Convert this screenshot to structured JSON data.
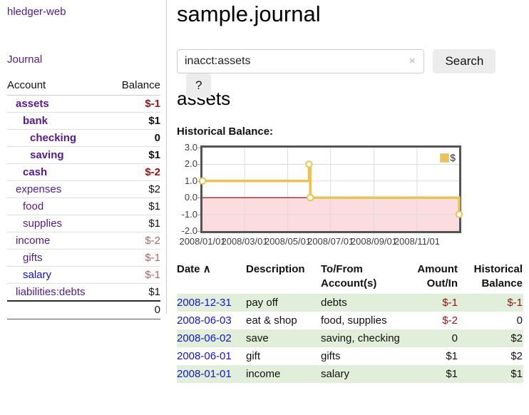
{
  "sidebar": {
    "brand": "hledger-web",
    "journal_link": "Journal",
    "accounts_table": {
      "account_header": "Account",
      "balance_header": "Balance",
      "rows": [
        {
          "name": "assets",
          "depth": 1,
          "bold": true,
          "balance": "$-1",
          "balance_tone": "neg-strong",
          "link_tone": "purple"
        },
        {
          "name": "bank",
          "depth": 2,
          "bold": true,
          "balance": "$1",
          "balance_tone": "",
          "link_tone": "purple"
        },
        {
          "name": "checking",
          "depth": 3,
          "bold": true,
          "balance": "0",
          "balance_tone": "",
          "link_tone": "purple"
        },
        {
          "name": "saving",
          "depth": 3,
          "bold": true,
          "balance": "$1",
          "balance_tone": "",
          "link_tone": "purple"
        },
        {
          "name": "cash",
          "depth": 2,
          "bold": true,
          "balance": "$-2",
          "balance_tone": "neg-strong",
          "link_tone": "purple"
        },
        {
          "name": "expenses",
          "depth": 1,
          "bold": false,
          "balance": "$2",
          "balance_tone": "",
          "link_tone": "purple"
        },
        {
          "name": "food",
          "depth": 2,
          "bold": false,
          "balance": "$1",
          "balance_tone": "",
          "link_tone": "purple"
        },
        {
          "name": "supplies",
          "depth": 2,
          "bold": false,
          "balance": "$1",
          "balance_tone": "",
          "link_tone": "purple"
        },
        {
          "name": "income",
          "depth": 1,
          "bold": false,
          "balance": "$-2",
          "balance_tone": "neg-soft",
          "link_tone": "purple"
        },
        {
          "name": "gifts",
          "depth": 2,
          "bold": false,
          "balance": "$-1",
          "balance_tone": "neg-soft",
          "link_tone": "purple"
        },
        {
          "name": "salary",
          "depth": 2,
          "bold": false,
          "balance": "$-1",
          "balance_tone": "neg-soft",
          "link_tone": "blue"
        },
        {
          "name": "liabilities:debts",
          "depth": 1,
          "bold": false,
          "balance": "$1",
          "balance_tone": "",
          "link_tone": "purple"
        }
      ],
      "total": "0"
    }
  },
  "header": {
    "title": "sample.journal"
  },
  "search": {
    "value": "inacct:assets",
    "clear_icon": "×",
    "search_button": "Search",
    "help_button": "?"
  },
  "account_page": {
    "heading": "assets",
    "chart_label": "Historical Balance:"
  },
  "chart_data": {
    "type": "line",
    "title": "Historical Balance:",
    "step": true,
    "ylim": [
      -2.0,
      3.0
    ],
    "yticks": [
      {
        "label": "3.0",
        "value": 3.0
      },
      {
        "label": "2.0",
        "value": 2.0
      },
      {
        "label": "1.0",
        "value": 1.0
      },
      {
        "label": "0.0",
        "value": 0.0
      },
      {
        "label": "-1.0",
        "value": -1.0
      },
      {
        "label": "-2.0",
        "value": -2.0
      }
    ],
    "xticks": [
      {
        "label": "2008/01/01",
        "pos": 0.0
      },
      {
        "label": "2008/03/01",
        "pos": 0.164
      },
      {
        "label": "2008/05/01",
        "pos": 0.332
      },
      {
        "label": "2008/07/01",
        "pos": 0.499
      },
      {
        "label": "2008/09/01",
        "pos": 0.668
      },
      {
        "label": "2008/11/01",
        "pos": 0.836
      }
    ],
    "series": [
      {
        "name": "$",
        "color": "#e9c353",
        "points": [
          {
            "date": "2008-01-01",
            "pos": 0.0,
            "value": 1.0
          },
          {
            "date": "2008-06-01",
            "pos": 0.415,
            "value": 2.0
          },
          {
            "date": "2008-06-03",
            "pos": 0.42,
            "value": 0.0
          },
          {
            "date": "2008-12-31",
            "pos": 1.0,
            "value": -1.0
          }
        ]
      }
    ],
    "legend": {
      "label": "$",
      "position": "top-right",
      "swatch_color": "#e9c353"
    },
    "negative_region_color": "#fbdcdf",
    "zero_line_color": "#8b0000",
    "grid_color": "#dcdcdc"
  },
  "register_table": {
    "headers": {
      "date": "Date",
      "sort_icon": "∧",
      "description": "Description",
      "account": "To/From Account(s)",
      "amount": "Amount Out/In",
      "balance": "Historical Balance"
    },
    "rows": [
      {
        "date": "2008-12-31",
        "description": "pay off",
        "account": "debts",
        "amount": "$-1",
        "amount_negative": true,
        "balance": "$-1",
        "balance_negative": true,
        "highlight": true
      },
      {
        "date": "2008-06-03",
        "description": "eat & shop",
        "account": "food, supplies",
        "amount": "$-2",
        "amount_negative": true,
        "balance": "0",
        "balance_negative": false,
        "highlight": false
      },
      {
        "date": "2008-06-02",
        "description": "save",
        "account": "saving, checking",
        "amount": "0",
        "amount_negative": false,
        "balance": "$2",
        "balance_negative": false,
        "highlight": true
      },
      {
        "date": "2008-06-01",
        "description": "gift",
        "account": "gifts",
        "amount": "$1",
        "amount_negative": false,
        "balance": "$2",
        "balance_negative": false,
        "highlight": false
      },
      {
        "date": "2008-01-01",
        "description": "income",
        "account": "salary",
        "amount": "$1",
        "amount_negative": false,
        "balance": "$1",
        "balance_negative": false,
        "highlight": true
      }
    ]
  }
}
